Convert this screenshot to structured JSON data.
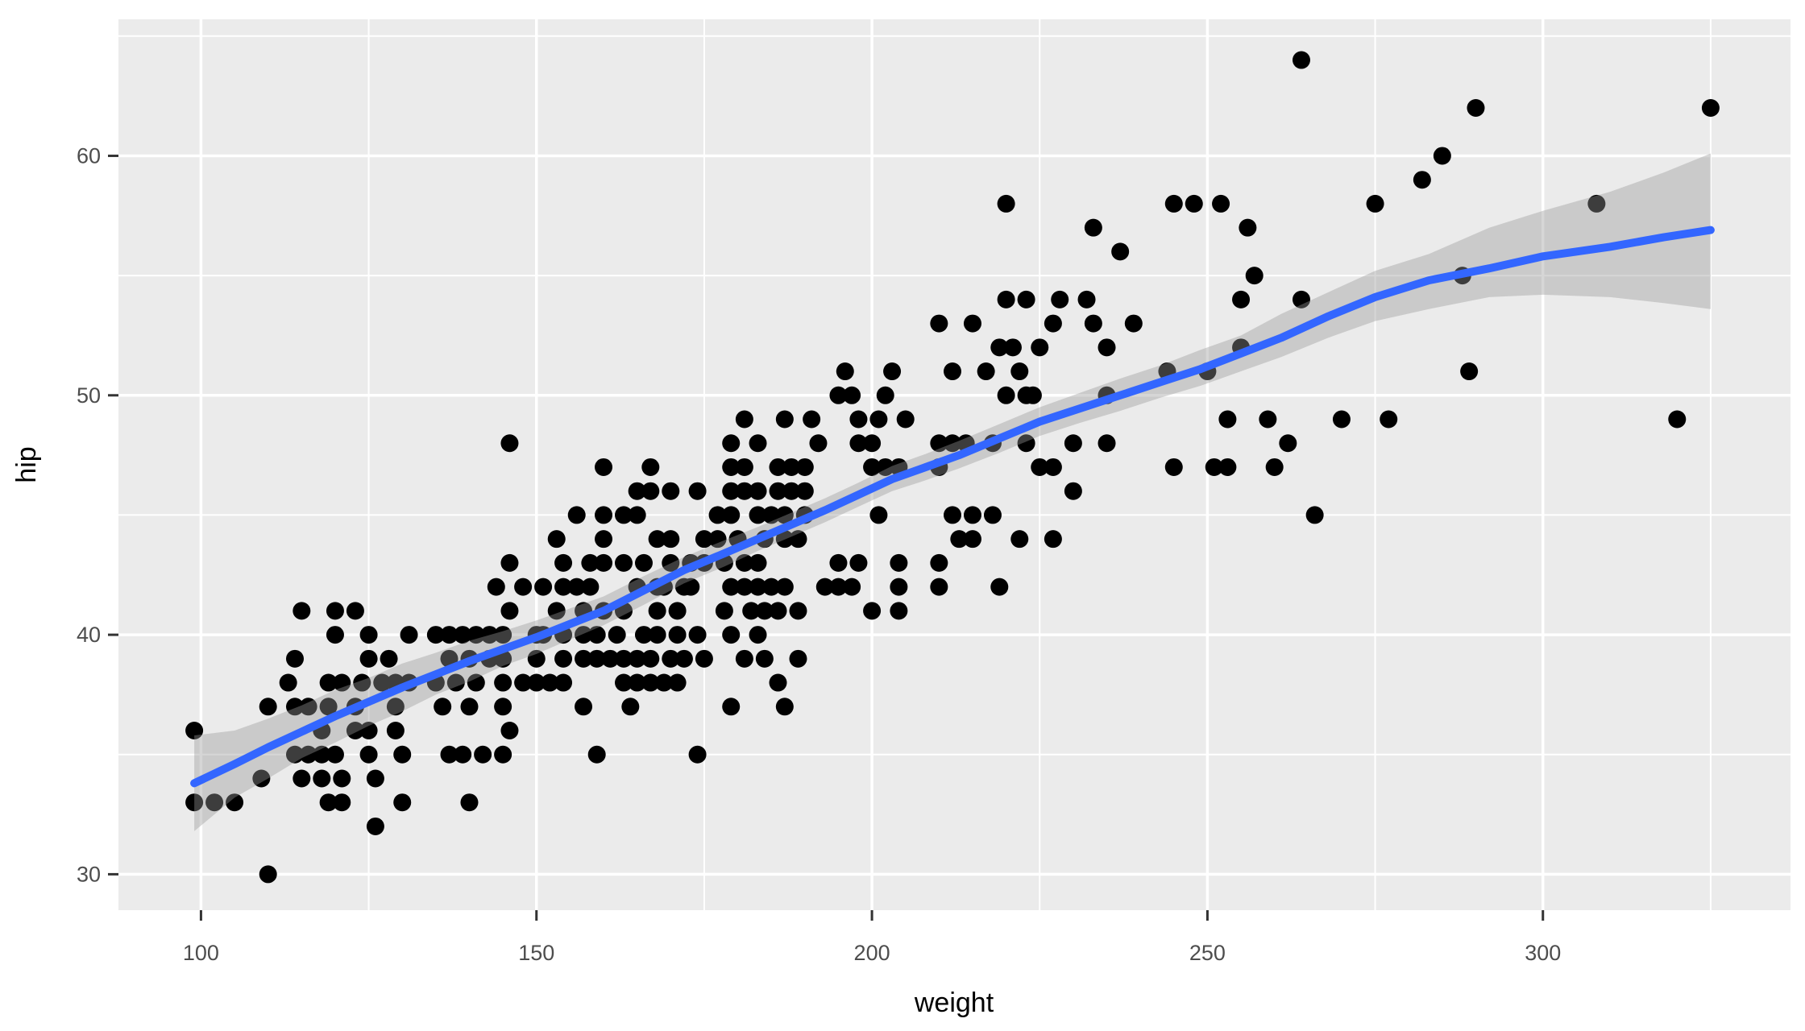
{
  "chart_data": {
    "type": "scatter",
    "title": "",
    "xlabel": "weight",
    "ylabel": "hip",
    "legend_position": "none",
    "panel_grid": "white major and minor gridlines on grey panel",
    "x_ticks": [
      100,
      150,
      200,
      250,
      300
    ],
    "x_minor_ticks": [
      125,
      175,
      225,
      275,
      325
    ],
    "y_ticks": [
      30,
      40,
      50,
      60
    ],
    "y_minor_ticks": [
      35,
      45,
      55,
      65
    ],
    "xlim": [
      87.7,
      336.9
    ],
    "ylim": [
      28.5,
      65.7
    ],
    "colors": {
      "panel_background": "#EBEBEB",
      "gridline": "#FFFFFF",
      "point": "#000000",
      "smooth_line": "#3366FF",
      "ribbon_fill": "#999999",
      "ribbon_alpha": 0.4,
      "tick_mark": "#333333",
      "tick_text": "#4D4D4D",
      "axis_title_color": "#000000",
      "page_background": "#FFFFFF"
    },
    "points": [
      [
        264,
        64
      ],
      [
        290,
        62
      ],
      [
        325,
        62
      ],
      [
        285,
        60
      ],
      [
        282,
        59
      ],
      [
        220,
        58
      ],
      [
        245,
        58
      ],
      [
        248,
        58
      ],
      [
        252,
        58
      ],
      [
        275,
        58
      ],
      [
        308,
        58
      ],
      [
        233,
        57
      ],
      [
        256,
        57
      ],
      [
        237,
        56
      ],
      [
        257,
        55
      ],
      [
        288,
        55
      ],
      [
        220,
        54
      ],
      [
        223,
        54
      ],
      [
        228,
        54
      ],
      [
        232,
        54
      ],
      [
        255,
        54
      ],
      [
        264,
        54
      ],
      [
        210,
        53
      ],
      [
        215,
        53
      ],
      [
        227,
        53
      ],
      [
        233,
        53
      ],
      [
        239,
        53
      ],
      [
        219,
        52
      ],
      [
        221,
        52
      ],
      [
        225,
        52
      ],
      [
        235,
        52
      ],
      [
        255,
        52
      ],
      [
        196,
        51
      ],
      [
        203,
        51
      ],
      [
        212,
        51
      ],
      [
        217,
        51
      ],
      [
        222,
        51
      ],
      [
        244,
        51
      ],
      [
        250,
        51
      ],
      [
        289,
        51
      ],
      [
        195,
        50
      ],
      [
        197,
        50
      ],
      [
        202,
        50
      ],
      [
        220,
        50
      ],
      [
        223,
        50
      ],
      [
        224,
        50
      ],
      [
        235,
        50
      ],
      [
        181,
        49
      ],
      [
        187,
        49
      ],
      [
        191,
        49
      ],
      [
        198,
        49
      ],
      [
        201,
        49
      ],
      [
        205,
        49
      ],
      [
        253,
        49
      ],
      [
        259,
        49
      ],
      [
        270,
        49
      ],
      [
        277,
        49
      ],
      [
        320,
        49
      ],
      [
        146,
        48
      ],
      [
        179,
        48
      ],
      [
        183,
        48
      ],
      [
        192,
        48
      ],
      [
        198,
        48
      ],
      [
        200,
        48
      ],
      [
        210,
        48
      ],
      [
        212,
        48
      ],
      [
        214,
        48
      ],
      [
        218,
        48
      ],
      [
        223,
        48
      ],
      [
        230,
        48
      ],
      [
        235,
        48
      ],
      [
        262,
        48
      ],
      [
        160,
        47
      ],
      [
        167,
        47
      ],
      [
        179,
        47
      ],
      [
        181,
        47
      ],
      [
        186,
        47
      ],
      [
        188,
        47
      ],
      [
        190,
        47
      ],
      [
        200,
        47
      ],
      [
        202,
        47
      ],
      [
        204,
        47
      ],
      [
        210,
        47
      ],
      [
        225,
        47
      ],
      [
        227,
        47
      ],
      [
        245,
        47
      ],
      [
        251,
        47
      ],
      [
        253,
        47
      ],
      [
        260,
        47
      ],
      [
        165,
        46
      ],
      [
        167,
        46
      ],
      [
        170,
        46
      ],
      [
        174,
        46
      ],
      [
        179,
        46
      ],
      [
        181,
        46
      ],
      [
        183,
        46
      ],
      [
        186,
        46
      ],
      [
        188,
        46
      ],
      [
        190,
        46
      ],
      [
        230,
        46
      ],
      [
        156,
        45
      ],
      [
        160,
        45
      ],
      [
        163,
        45
      ],
      [
        165,
        45
      ],
      [
        177,
        45
      ],
      [
        179,
        45
      ],
      [
        183,
        45
      ],
      [
        185,
        45
      ],
      [
        187,
        45
      ],
      [
        190,
        45
      ],
      [
        201,
        45
      ],
      [
        212,
        45
      ],
      [
        215,
        45
      ],
      [
        218,
        45
      ],
      [
        266,
        45
      ],
      [
        153,
        44
      ],
      [
        160,
        44
      ],
      [
        168,
        44
      ],
      [
        170,
        44
      ],
      [
        175,
        44
      ],
      [
        177,
        44
      ],
      [
        180,
        44
      ],
      [
        184,
        44
      ],
      [
        187,
        44
      ],
      [
        189,
        44
      ],
      [
        213,
        44
      ],
      [
        215,
        44
      ],
      [
        222,
        44
      ],
      [
        227,
        44
      ],
      [
        146,
        43
      ],
      [
        154,
        43
      ],
      [
        158,
        43
      ],
      [
        160,
        43
      ],
      [
        163,
        43
      ],
      [
        166,
        43
      ],
      [
        170,
        43
      ],
      [
        173,
        43
      ],
      [
        175,
        43
      ],
      [
        178,
        43
      ],
      [
        181,
        43
      ],
      [
        183,
        43
      ],
      [
        195,
        43
      ],
      [
        198,
        43
      ],
      [
        204,
        43
      ],
      [
        210,
        43
      ],
      [
        144,
        42
      ],
      [
        148,
        42
      ],
      [
        151,
        42
      ],
      [
        154,
        42
      ],
      [
        156,
        42
      ],
      [
        158,
        42
      ],
      [
        165,
        42
      ],
      [
        168,
        42
      ],
      [
        169,
        42
      ],
      [
        172,
        42
      ],
      [
        173,
        42
      ],
      [
        179,
        42
      ],
      [
        181,
        42
      ],
      [
        183,
        42
      ],
      [
        185,
        42
      ],
      [
        187,
        42
      ],
      [
        193,
        42
      ],
      [
        195,
        42
      ],
      [
        197,
        42
      ],
      [
        204,
        42
      ],
      [
        210,
        42
      ],
      [
        219,
        42
      ],
      [
        115,
        41
      ],
      [
        120,
        41
      ],
      [
        123,
        41
      ],
      [
        146,
        41
      ],
      [
        153,
        41
      ],
      [
        157,
        41
      ],
      [
        160,
        41
      ],
      [
        163,
        41
      ],
      [
        168,
        41
      ],
      [
        171,
        41
      ],
      [
        178,
        41
      ],
      [
        182,
        41
      ],
      [
        184,
        41
      ],
      [
        186,
        41
      ],
      [
        189,
        41
      ],
      [
        200,
        41
      ],
      [
        204,
        41
      ],
      [
        120,
        40
      ],
      [
        125,
        40
      ],
      [
        131,
        40
      ],
      [
        135,
        40
      ],
      [
        137,
        40
      ],
      [
        139,
        40
      ],
      [
        141,
        40
      ],
      [
        143,
        40
      ],
      [
        145,
        40
      ],
      [
        150,
        40
      ],
      [
        151,
        40
      ],
      [
        154,
        40
      ],
      [
        157,
        40
      ],
      [
        159,
        40
      ],
      [
        162,
        40
      ],
      [
        166,
        40
      ],
      [
        168,
        40
      ],
      [
        171,
        40
      ],
      [
        174,
        40
      ],
      [
        179,
        40
      ],
      [
        183,
        40
      ],
      [
        114,
        39
      ],
      [
        125,
        39
      ],
      [
        128,
        39
      ],
      [
        137,
        39
      ],
      [
        140,
        39
      ],
      [
        143,
        39
      ],
      [
        145,
        39
      ],
      [
        150,
        39
      ],
      [
        154,
        39
      ],
      [
        157,
        39
      ],
      [
        159,
        39
      ],
      [
        161,
        39
      ],
      [
        163,
        39
      ],
      [
        165,
        39
      ],
      [
        167,
        39
      ],
      [
        170,
        39
      ],
      [
        172,
        39
      ],
      [
        175,
        39
      ],
      [
        181,
        39
      ],
      [
        184,
        39
      ],
      [
        189,
        39
      ],
      [
        113,
        38
      ],
      [
        119,
        38
      ],
      [
        121,
        38
      ],
      [
        124,
        38
      ],
      [
        127,
        38
      ],
      [
        129,
        38
      ],
      [
        131,
        38
      ],
      [
        135,
        38
      ],
      [
        138,
        38
      ],
      [
        141,
        38
      ],
      [
        145,
        38
      ],
      [
        148,
        38
      ],
      [
        150,
        38
      ],
      [
        152,
        38
      ],
      [
        154,
        38
      ],
      [
        163,
        38
      ],
      [
        165,
        38
      ],
      [
        167,
        38
      ],
      [
        169,
        38
      ],
      [
        171,
        38
      ],
      [
        186,
        38
      ],
      [
        110,
        37
      ],
      [
        114,
        37
      ],
      [
        116,
        37
      ],
      [
        119,
        37
      ],
      [
        123,
        37
      ],
      [
        129,
        37
      ],
      [
        136,
        37
      ],
      [
        140,
        37
      ],
      [
        145,
        37
      ],
      [
        157,
        37
      ],
      [
        164,
        37
      ],
      [
        179,
        37
      ],
      [
        187,
        37
      ],
      [
        99,
        36
      ],
      [
        118,
        36
      ],
      [
        123,
        36
      ],
      [
        125,
        36
      ],
      [
        129,
        36
      ],
      [
        146,
        36
      ],
      [
        114,
        35
      ],
      [
        116,
        35
      ],
      [
        118,
        35
      ],
      [
        120,
        35
      ],
      [
        125,
        35
      ],
      [
        130,
        35
      ],
      [
        137,
        35
      ],
      [
        139,
        35
      ],
      [
        142,
        35
      ],
      [
        145,
        35
      ],
      [
        159,
        35
      ],
      [
        174,
        35
      ],
      [
        109,
        34
      ],
      [
        115,
        34
      ],
      [
        118,
        34
      ],
      [
        121,
        34
      ],
      [
        126,
        34
      ],
      [
        99,
        33
      ],
      [
        102,
        33
      ],
      [
        105,
        33
      ],
      [
        119,
        33
      ],
      [
        121,
        33
      ],
      [
        130,
        33
      ],
      [
        140,
        33
      ],
      [
        126,
        32
      ],
      [
        110,
        30
      ]
    ],
    "smooth_line": [
      [
        99,
        33.8
      ],
      [
        105,
        34.6
      ],
      [
        110,
        35.3
      ],
      [
        115,
        35.95
      ],
      [
        120,
        36.6
      ],
      [
        125,
        37.2
      ],
      [
        130,
        37.8
      ],
      [
        135,
        38.35
      ],
      [
        140,
        38.9
      ],
      [
        145,
        39.4
      ],
      [
        150,
        39.9
      ],
      [
        155,
        40.45
      ],
      [
        160,
        41.0
      ],
      [
        166,
        41.85
      ],
      [
        172,
        42.7
      ],
      [
        178,
        43.4
      ],
      [
        183,
        44.0
      ],
      [
        188,
        44.6
      ],
      [
        193,
        45.2
      ],
      [
        198,
        45.85
      ],
      [
        203,
        46.5
      ],
      [
        208,
        47.0
      ],
      [
        213,
        47.5
      ],
      [
        219,
        48.2
      ],
      [
        225,
        48.9
      ],
      [
        231,
        49.45
      ],
      [
        237,
        50.0
      ],
      [
        243,
        50.55
      ],
      [
        249,
        51.1
      ],
      [
        255,
        51.75
      ],
      [
        261,
        52.4
      ],
      [
        268,
        53.3
      ],
      [
        275,
        54.1
      ],
      [
        283,
        54.8
      ],
      [
        292,
        55.3
      ],
      [
        300,
        55.8
      ],
      [
        310,
        56.2
      ],
      [
        318,
        56.6
      ],
      [
        325,
        56.9
      ]
    ],
    "ribbon": [
      [
        99,
        31.8,
        35.8
      ],
      [
        105,
        33.2,
        36.0
      ],
      [
        110,
        34.0,
        36.5
      ],
      [
        115,
        34.85,
        37.05
      ],
      [
        120,
        35.5,
        37.7
      ],
      [
        125,
        36.2,
        38.2
      ],
      [
        130,
        36.8,
        38.8
      ],
      [
        135,
        37.5,
        39.25
      ],
      [
        140,
        38.05,
        39.75
      ],
      [
        145,
        38.7,
        40.15
      ],
      [
        150,
        39.2,
        40.6
      ],
      [
        155,
        39.8,
        41.1
      ],
      [
        160,
        40.4,
        41.6
      ],
      [
        166,
        41.25,
        42.45
      ],
      [
        172,
        42.15,
        43.25
      ],
      [
        178,
        42.85,
        43.95
      ],
      [
        183,
        43.5,
        44.5
      ],
      [
        188,
        44.1,
        45.1
      ],
      [
        193,
        44.7,
        45.7
      ],
      [
        198,
        45.35,
        46.35
      ],
      [
        203,
        46.0,
        47.05
      ],
      [
        208,
        46.45,
        47.55
      ],
      [
        213,
        46.95,
        48.1
      ],
      [
        219,
        47.6,
        48.8
      ],
      [
        225,
        48.3,
        49.5
      ],
      [
        231,
        48.85,
        50.1
      ],
      [
        237,
        49.35,
        50.7
      ],
      [
        243,
        49.9,
        51.25
      ],
      [
        249,
        50.4,
        51.9
      ],
      [
        255,
        51.0,
        52.5
      ],
      [
        261,
        51.6,
        53.4
      ],
      [
        268,
        52.4,
        54.3
      ],
      [
        275,
        53.1,
        55.2
      ],
      [
        283,
        53.6,
        55.9
      ],
      [
        292,
        54.1,
        57.0
      ],
      [
        300,
        54.2,
        57.7
      ],
      [
        310,
        54.1,
        58.5
      ],
      [
        318,
        53.85,
        59.3
      ],
      [
        325,
        53.6,
        60.1
      ]
    ]
  }
}
